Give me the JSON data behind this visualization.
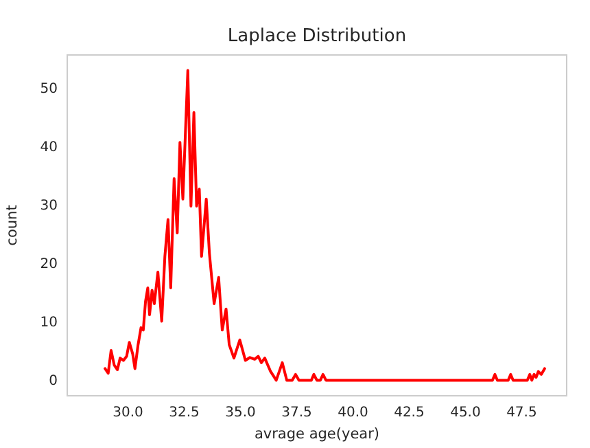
{
  "chart_data": {
    "type": "line",
    "title": "Laplace Distribution",
    "xlabel": "avrage age(year)",
    "ylabel": "count",
    "xlim": [
      27.3,
      49.5
    ],
    "ylim": [
      -2.65,
      55.65
    ],
    "xticks": [
      {
        "value": 30,
        "label": "30.0"
      },
      {
        "value": 32.5,
        "label": "32.5"
      },
      {
        "value": 35,
        "label": "35.0"
      },
      {
        "value": 37.5,
        "label": "37.5"
      },
      {
        "value": 40,
        "label": "40.0"
      },
      {
        "value": 42.5,
        "label": "42.5"
      },
      {
        "value": 45,
        "label": "45.0"
      },
      {
        "value": 47.5,
        "label": "47.5"
      }
    ],
    "yticks": [
      0,
      10,
      20,
      30,
      40,
      50
    ],
    "grid": false,
    "marker": "none",
    "line_style": "solid",
    "series": [
      {
        "color": "#ff0000",
        "x": [
          28.98,
          29.12,
          29.25,
          29.39,
          29.53,
          29.65,
          29.8,
          29.94,
          30.06,
          30.21,
          30.31,
          30.45,
          30.58,
          30.68,
          30.78,
          30.88,
          30.96,
          31.07,
          31.17,
          31.33,
          31.5,
          31.64,
          31.78,
          31.9,
          32.05,
          32.19,
          32.31,
          32.44,
          32.66,
          32.8,
          32.93,
          33.05,
          33.17,
          33.27,
          33.48,
          33.62,
          33.83,
          34.03,
          34.19,
          34.36,
          34.5,
          34.71,
          34.97,
          35.22,
          35.42,
          35.63,
          35.79,
          35.93,
          36.08,
          36.34,
          36.59,
          36.86,
          37.06,
          37.3,
          37.45,
          37.6,
          38.15,
          38.26,
          38.4,
          38.55,
          38.67,
          38.8,
          46.2,
          46.31,
          46.42,
          46.9,
          47.01,
          47.12,
          47.75,
          47.86,
          47.95,
          48.05,
          48.14,
          48.24,
          48.37,
          48.52
        ],
        "values": [
          2,
          1.2,
          5.1,
          2.6,
          1.8,
          3.8,
          3.4,
          4.1,
          6.5,
          4.5,
          2,
          6.1,
          9,
          8.6,
          13.5,
          15.8,
          11.2,
          15.4,
          13.1,
          18.5,
          10.1,
          21.2,
          27.5,
          15.8,
          34.5,
          25.2,
          40.7,
          31,
          53,
          29.8,
          45.8,
          29.8,
          32.7,
          21.2,
          31,
          21.7,
          13.1,
          17.6,
          8.6,
          12.2,
          6.1,
          3.8,
          6.9,
          3.4,
          3.9,
          3.6,
          4.1,
          3,
          3.8,
          1.5,
          0,
          3,
          0,
          0,
          1,
          0,
          0,
          1,
          0,
          0,
          1,
          0,
          0,
          1,
          0,
          0,
          1,
          0,
          0,
          1,
          0,
          1,
          0.5,
          1.5,
          1,
          2
        ]
      }
    ]
  }
}
